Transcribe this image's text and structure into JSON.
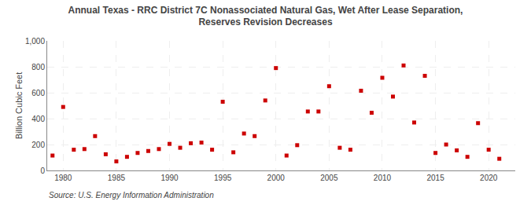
{
  "chart_data": {
    "type": "scatter",
    "title": "Annual Texas - RRC District 7C Nonassociated Natural Gas, Wet After Lease Separation,\nReserves Revision Decreases",
    "ylabel": "Billion Cubic Feet",
    "annotations": [
      "Source: U.S. Energy Information Administration"
    ],
    "x": [
      1979,
      1980,
      1981,
      1982,
      1983,
      1984,
      1985,
      1986,
      1987,
      1988,
      1989,
      1990,
      1991,
      1992,
      1993,
      1994,
      1995,
      1996,
      1997,
      1998,
      1999,
      2000,
      2001,
      2002,
      2003,
      2004,
      2005,
      2006,
      2007,
      2008,
      2009,
      2010,
      2011,
      2012,
      2013,
      2014,
      2015,
      2016,
      2017,
      2018,
      2019,
      2020,
      2021
    ],
    "values": [
      115,
      490,
      160,
      165,
      265,
      125,
      70,
      105,
      135,
      150,
      165,
      205,
      175,
      210,
      215,
      160,
      530,
      140,
      285,
      265,
      540,
      790,
      115,
      195,
      455,
      455,
      650,
      175,
      160,
      615,
      445,
      715,
      570,
      810,
      370,
      730,
      135,
      200,
      155,
      105,
      365,
      160,
      90
    ],
    "color": "#cc0000",
    "marker": "square",
    "xlim": [
      1978.5,
      2022.5
    ],
    "xticks": [
      1980,
      1985,
      1990,
      1995,
      2000,
      2005,
      2010,
      2015,
      2020
    ],
    "ylim": [
      0,
      1000
    ],
    "yticks": [
      0,
      200,
      400,
      600,
      800,
      {
        "value": 1000,
        "label": "1,000"
      }
    ],
    "grid": true
  }
}
